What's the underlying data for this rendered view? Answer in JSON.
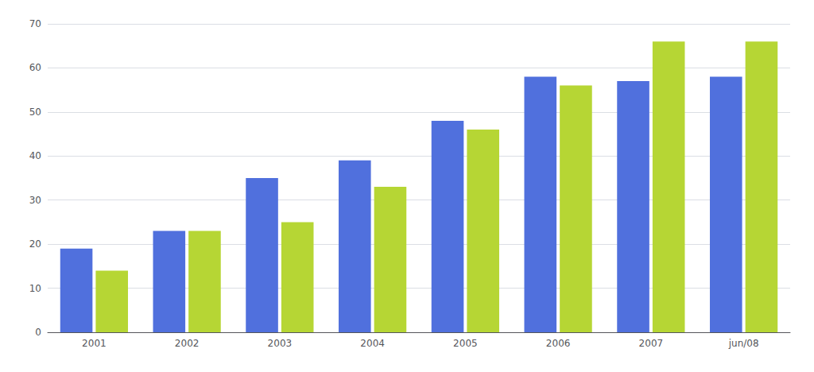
{
  "chart_data": {
    "type": "bar",
    "categories": [
      "2001",
      "2002",
      "2003",
      "2004",
      "2005",
      "2006",
      "2007",
      "jun/08"
    ],
    "series": [
      {
        "values": [
          19,
          23,
          35,
          39,
          48,
          58,
          57,
          58
        ]
      },
      {
        "values": [
          14,
          23,
          25,
          33,
          46,
          56,
          66,
          66
        ]
      }
    ],
    "ylim": [
      0,
      70
    ],
    "yticks": [
      0,
      10,
      20,
      30,
      40,
      50,
      60,
      70
    ],
    "grid": true
  }
}
